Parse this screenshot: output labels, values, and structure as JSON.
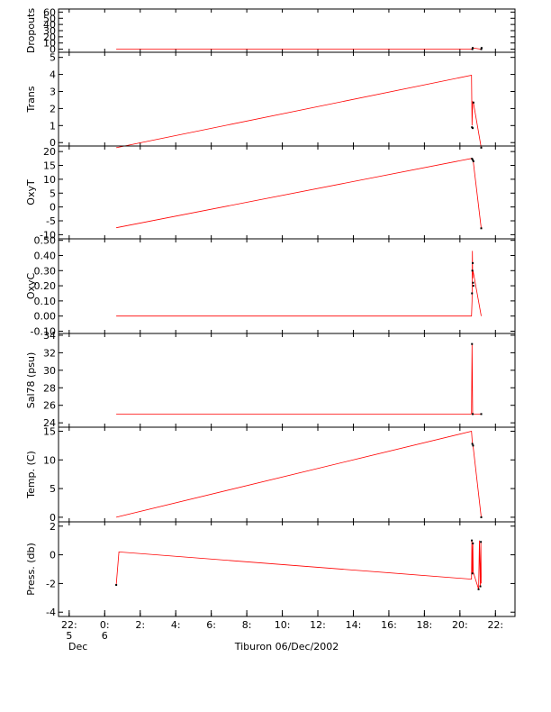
{
  "colors": {
    "series_line": "#ff0000",
    "markers": "#000000",
    "axes": "#000000",
    "background": "#ffffff"
  },
  "x_axis": {
    "tick_labels": [
      "22:",
      "0:",
      "2:",
      "4:",
      "6:",
      "8:",
      "10:",
      "12:",
      "14:",
      "16:",
      "18:",
      "20:",
      "22:"
    ],
    "sub_labels_1": [
      "5",
      "6"
    ],
    "sub_labels_2": [
      "Dec"
    ],
    "caption": "Tiburon 06/Dec/2002",
    "range_hours": [
      -2.6,
      23.1
    ]
  },
  "chart_data": [
    {
      "type": "line",
      "ylabel": "Dropouts",
      "ylim": [
        -5,
        65
      ],
      "yticks": [
        0,
        10,
        20,
        30,
        40,
        50,
        60
      ],
      "ytick_labels": [
        "0",
        "10",
        "20",
        "30",
        "40",
        "50",
        "60"
      ],
      "x_hours": [
        0.65,
        20.7,
        20.72,
        21.2,
        21.22
      ],
      "y": [
        0,
        0,
        2,
        0,
        2
      ],
      "markers_x_hours": [
        20.7,
        20.72,
        21.2,
        21.22
      ],
      "markers_y": [
        0,
        2,
        0,
        2
      ]
    },
    {
      "type": "line",
      "ylabel": "Trans",
      "ylim": [
        -0.2,
        5.3
      ],
      "yticks": [
        0,
        1,
        2,
        3,
        4,
        5
      ],
      "ytick_labels": [
        "0",
        "1",
        "2",
        "3",
        "4",
        "5"
      ],
      "x_hours": [
        0.65,
        20.65,
        20.68,
        20.72,
        20.76,
        21.2
      ],
      "y": [
        -0.3,
        3.95,
        1.0,
        2.4,
        2.35,
        -0.3
      ],
      "markers_x_hours": [
        20.68,
        20.72,
        20.76,
        21.2
      ],
      "markers_y": [
        0.9,
        0.85,
        2.35,
        -0.3
      ]
    },
    {
      "type": "line",
      "ylabel": "OxyT",
      "ylim": [
        -11.5,
        22
      ],
      "yticks": [
        -10,
        -5,
        0,
        5,
        10,
        15,
        20
      ],
      "ytick_labels": [
        "-10",
        "-5",
        "0",
        "5",
        "10",
        "15",
        "20"
      ],
      "x_hours": [
        0.65,
        20.65,
        20.7,
        20.75,
        21.2
      ],
      "y": [
        -7.5,
        17.5,
        17.0,
        16.5,
        -7.7
      ],
      "markers_x_hours": [
        20.68,
        20.72,
        20.76,
        21.2
      ],
      "markers_y": [
        17.4,
        17.0,
        16.5,
        -7.7
      ]
    },
    {
      "type": "line",
      "ylabel": "OxyC",
      "ylim": [
        -0.115,
        0.51
      ],
      "yticks": [
        -0.1,
        0,
        0.1,
        0.2,
        0.3,
        0.4,
        0.5
      ],
      "ytick_labels": [
        "-0.10",
        "0.00",
        "0.10",
        "0.20",
        "0.30",
        "0.40",
        "0.50"
      ],
      "x_hours": [
        0.65,
        20.65,
        20.68,
        20.7,
        20.72,
        20.74,
        21.2
      ],
      "y": [
        0.0,
        0.0,
        0.1,
        0.43,
        0.25,
        0.3,
        0.0
      ],
      "markers_x_hours": [
        20.68,
        20.7,
        20.72,
        20.74,
        20.76
      ],
      "markers_y": [
        0.15,
        0.3,
        0.35,
        0.22,
        0.2
      ]
    },
    {
      "type": "line",
      "ylabel": "Sal78 (psu)",
      "ylim": [
        23.5,
        34.2
      ],
      "yticks": [
        24,
        26,
        28,
        30,
        32,
        34
      ],
      "ytick_labels": [
        "24",
        "26",
        "28",
        "30",
        "32",
        "34"
      ],
      "x_hours": [
        0.65,
        20.65,
        20.68,
        20.72,
        21.2
      ],
      "y": [
        25.0,
        25.0,
        33.0,
        25.0,
        25.0
      ],
      "markers_x_hours": [
        20.68,
        20.72,
        21.2
      ],
      "markers_y": [
        33.0,
        25.0,
        25.0
      ]
    },
    {
      "type": "line",
      "ylabel": "Temp. (C)",
      "ylim": [
        -0.8,
        15.7
      ],
      "yticks": [
        0,
        5,
        10,
        15
      ],
      "ytick_labels": [
        "0",
        "5",
        "10",
        "15"
      ],
      "x_hours": [
        0.65,
        20.65,
        20.7,
        20.74,
        21.2
      ],
      "y": [
        0.0,
        15.0,
        12.8,
        12.5,
        0.0
      ],
      "markers_x_hours": [
        20.7,
        20.74,
        21.2
      ],
      "markers_y": [
        12.8,
        12.5,
        0.0
      ]
    },
    {
      "type": "line",
      "ylabel": "Press. (db)",
      "ylim": [
        -4.3,
        2.3
      ],
      "yticks": [
        -4,
        -2,
        0,
        2
      ],
      "ytick_labels": [
        "-4",
        "-2",
        "0",
        "2"
      ],
      "x_hours": [
        0.65,
        0.8,
        20.65,
        20.67,
        20.7,
        20.73,
        20.75,
        21.0,
        21.05,
        21.1,
        21.15,
        21.18,
        21.2
      ],
      "y": [
        -2.1,
        0.2,
        -1.7,
        1.0,
        -1.3,
        0.8,
        -1.2,
        -2.2,
        -2.4,
        1.0,
        -2.2,
        0.9,
        -2.0
      ],
      "markers_x_hours": [
        0.65,
        20.67,
        20.7,
        20.73,
        21.05,
        21.15,
        21.18
      ],
      "markers_y": [
        -2.1,
        1.0,
        -1.3,
        0.8,
        -2.4,
        -2.2,
        0.9
      ]
    }
  ]
}
